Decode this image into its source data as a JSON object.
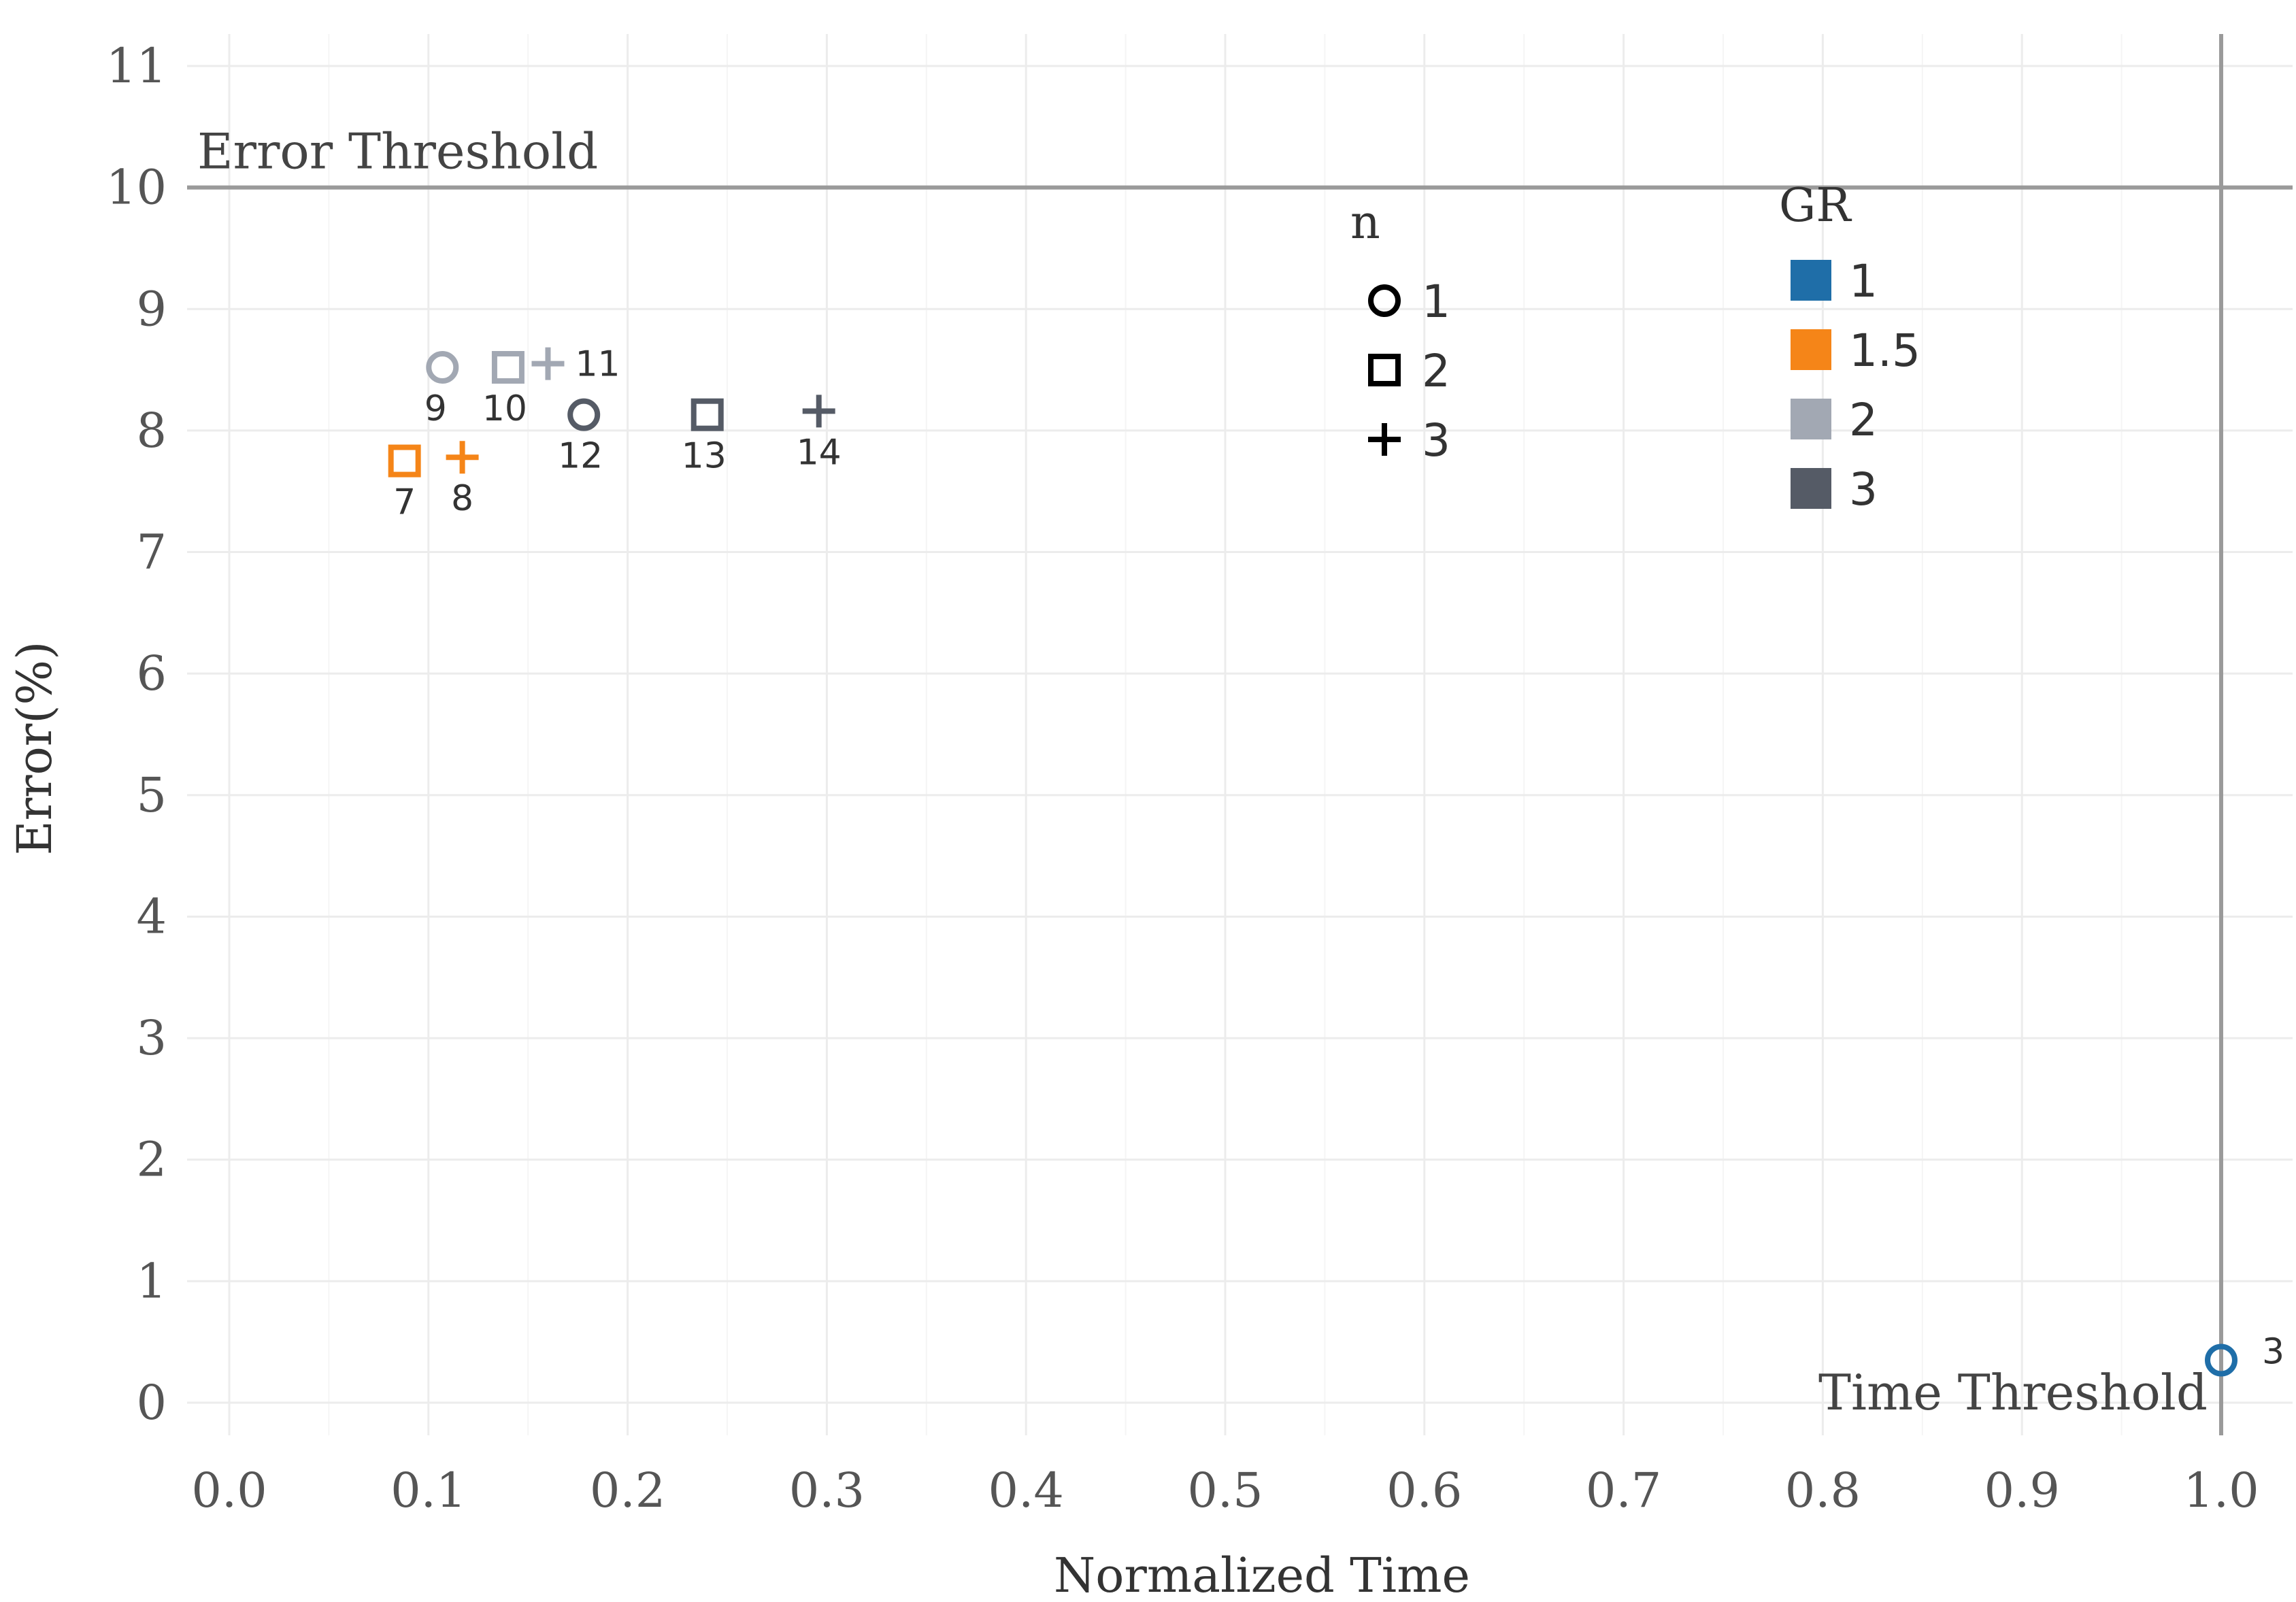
{
  "chart_data": {
    "type": "scatter",
    "xlabel": "Normalized Time",
    "ylabel": "Error(%)",
    "xlim": [
      0.0,
      1.0
    ],
    "ylim": [
      0,
      11
    ],
    "x_ticks": [
      "0.0",
      "0.1",
      "0.2",
      "0.3",
      "0.4",
      "0.5",
      "0.6",
      "0.7",
      "0.8",
      "0.9",
      "1.0"
    ],
    "y_ticks": [
      "0",
      "1",
      "2",
      "3",
      "4",
      "5",
      "6",
      "7",
      "8",
      "9",
      "10",
      "11"
    ],
    "grid": true,
    "thresholds": [
      {
        "axis": "y",
        "value": 10,
        "label": "Error Threshold"
      },
      {
        "axis": "x",
        "value": 1.0,
        "label": "Time Threshold"
      }
    ],
    "points": [
      {
        "label": "3",
        "x": 1.0,
        "y": 0.35,
        "n": 1,
        "gr": "1"
      },
      {
        "label": "7",
        "x": 0.088,
        "y": 7.75,
        "n": 2,
        "gr": "1.5"
      },
      {
        "label": "8",
        "x": 0.117,
        "y": 7.78,
        "n": 3,
        "gr": "1.5"
      },
      {
        "label": "9",
        "x": 0.107,
        "y": 8.52,
        "n": 1,
        "gr": "2"
      },
      {
        "label": "10",
        "x": 0.14,
        "y": 8.52,
        "n": 2,
        "gr": "2"
      },
      {
        "label": "11",
        "x": 0.16,
        "y": 8.55,
        "n": 3,
        "gr": "2"
      },
      {
        "label": "12",
        "x": 0.178,
        "y": 8.13,
        "n": 1,
        "gr": "3"
      },
      {
        "label": "13",
        "x": 0.24,
        "y": 8.13,
        "n": 2,
        "gr": "3"
      },
      {
        "label": "14",
        "x": 0.296,
        "y": 8.16,
        "n": 3,
        "gr": "3"
      }
    ],
    "legend_n": {
      "title": "n",
      "entries": [
        {
          "label": "1",
          "shape": "circle"
        },
        {
          "label": "2",
          "shape": "square"
        },
        {
          "label": "3",
          "shape": "plus"
        }
      ]
    },
    "legend_gr": {
      "title": "GR",
      "entries": [
        {
          "label": "1",
          "color": "#1f6ea8"
        },
        {
          "label": "1.5",
          "color": "#f58518"
        },
        {
          "label": "2",
          "color": "#a2a8b3"
        },
        {
          "label": "3",
          "color": "#555b66"
        }
      ]
    }
  }
}
